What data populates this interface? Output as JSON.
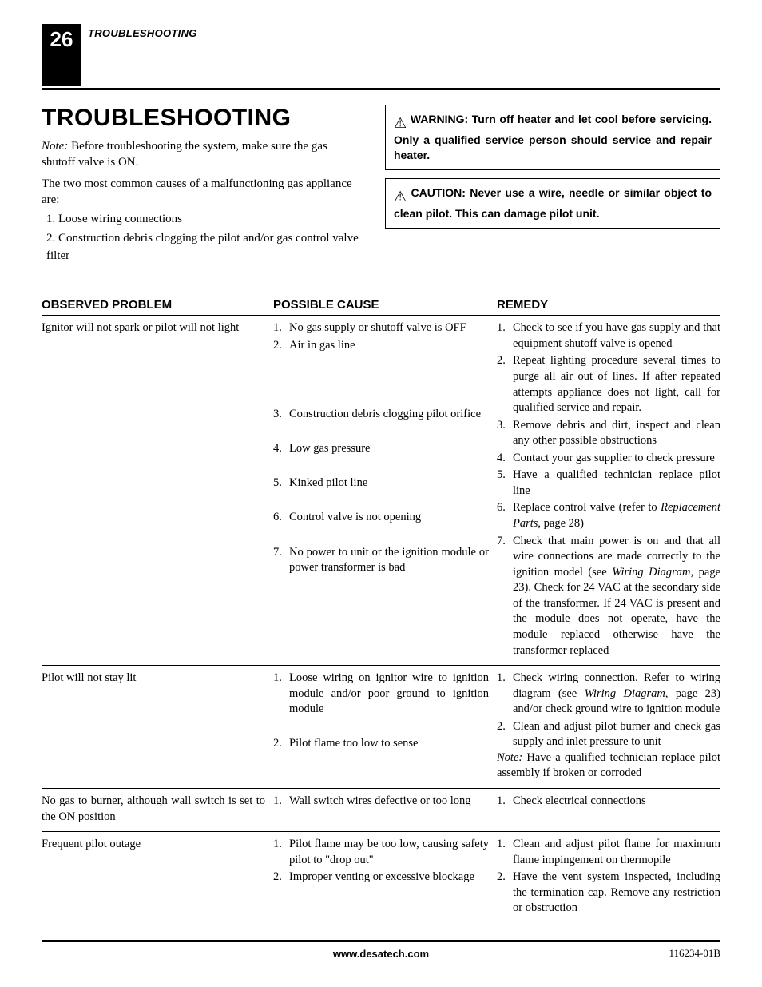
{
  "header": {
    "page_number": "26",
    "section_label": "TROUBLESHOOTING"
  },
  "main": {
    "title": "TROUBLESHOOTING",
    "note_label": "Note:",
    "note_text": " Before troubleshooting the system, make sure the gas shutoff valve is ON.",
    "intro": "The two most common causes of a malfunctioning gas appliance are:",
    "intro_items": [
      "1.  Loose wiring connections",
      "2.  Construction debris clogging the pilot and/or gas control valve filter"
    ],
    "warning": "WARNING: Turn off heater and let cool before servicing. Only a qualified service person should service and repair heater.",
    "caution": "CAUTION: Never use a wire, needle or similar object to clean pilot. This can damage pilot unit."
  },
  "table": {
    "headers": {
      "problem": "OBSERVED PROBLEM",
      "cause": "POSSIBLE CAUSE",
      "remedy": "REMEDY"
    },
    "rows": [
      {
        "problem": "Ignitor will not spark or pilot will not light",
        "causes": [
          {
            "n": "1.",
            "t": "No gas supply or shutoff valve is OFF"
          },
          {
            "n": "2.",
            "t": "Air in gas line"
          },
          {
            "n": "",
            "t": ""
          },
          {
            "n": "",
            "t": ""
          },
          {
            "n": "",
            "t": ""
          },
          {
            "n": "3.",
            "t": "Construction debris clogging pilot orifice"
          },
          {
            "n": "",
            "t": ""
          },
          {
            "n": "4.",
            "t": "Low gas pressure"
          },
          {
            "n": "",
            "t": ""
          },
          {
            "n": "5.",
            "t": "Kinked pilot line"
          },
          {
            "n": "",
            "t": ""
          },
          {
            "n": "6.",
            "t": "Control valve is not opening"
          },
          {
            "n": "",
            "t": ""
          },
          {
            "n": "7.",
            "t": "No power to unit or the ignition module or power transformer is bad"
          }
        ],
        "remedies": [
          {
            "n": "1.",
            "t": "Check to see if you have gas supply and that equipment shutoff valve is opened"
          },
          {
            "n": "2.",
            "t": "Repeat lighting procedure several times to purge all air out of lines. If after repeated attempts appliance does not light, call for qualified service and repair."
          },
          {
            "n": "3.",
            "t": "Remove debris and dirt, inspect and clean any other possible obstructions"
          },
          {
            "n": "4.",
            "t": "Contact your gas supplier to check pressure"
          },
          {
            "n": "5.",
            "t": "Have a qualified technician replace pilot line"
          },
          {
            "n": "6.",
            "t": "Replace control valve (refer to <em>Replacement Parts</em>, page 28)"
          },
          {
            "n": "7.",
            "t": "Check that main power is on and that all wire connections are made correctly to the ignition model (see <em>Wiring Diagram</em>, page 23). Check for 24 VAC at the secondary side of the transformer. If 24 VAC is present and the module does not operate, have the module replaced otherwise have the transformer replaced"
          }
        ]
      },
      {
        "problem": "Pilot will not stay lit",
        "causes": [
          {
            "n": "1.",
            "t": "Loose wiring on ignitor wire to ignition module and/or poor ground to ignition module"
          },
          {
            "n": "",
            "t": ""
          },
          {
            "n": "2.",
            "t": "Pilot flame too low to sense"
          }
        ],
        "remedies": [
          {
            "n": "1.",
            "t": "Check wiring connection. Refer to wiring diagram (see <em>Wiring Diagram</em>, page 23) and/or check ground wire to ignition module"
          },
          {
            "n": "2.",
            "t": "Clean and adjust pilot burner and check gas supply and inlet pressure to unit"
          }
        ],
        "remedy_note_label": "Note:",
        "remedy_note": " Have a qualified technician replace pilot assembly if broken or corroded"
      },
      {
        "problem": "No gas to burner, although wall switch is set to the ON position",
        "causes": [
          {
            "n": "1.",
            "t": "Wall switch wires defective or too long"
          }
        ],
        "remedies": [
          {
            "n": "1.",
            "t": "Check electrical connections"
          }
        ]
      },
      {
        "problem": "Frequent pilot outage",
        "causes": [
          {
            "n": "1.",
            "t": "Pilot flame may be too low, causing safety pilot to \"drop out\""
          },
          {
            "n": "2.",
            "t": "Improper venting or excessive blockage"
          }
        ],
        "remedies": [
          {
            "n": "1.",
            "t": "Clean and adjust pilot flame for maximum flame impingement on thermopile"
          },
          {
            "n": "2.",
            "t": "Have the vent system inspected, including the termination cap. Remove any restriction or obstruction"
          }
        ]
      }
    ]
  },
  "footer": {
    "url": "www.desatech.com",
    "docnum": "116234-01B"
  }
}
